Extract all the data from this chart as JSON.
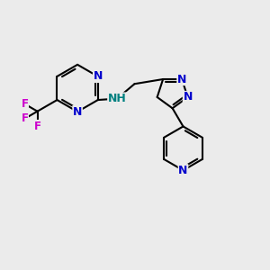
{
  "background_color": "#ebebeb",
  "bond_color": "#000000",
  "n_color": "#0000cc",
  "f_color": "#cc00cc",
  "nh_color": "#008080",
  "bond_width": 1.5,
  "figsize": [
    3.0,
    3.0
  ],
  "dpi": 100,
  "xlim": [
    0,
    10
  ],
  "ylim": [
    0,
    10
  ]
}
